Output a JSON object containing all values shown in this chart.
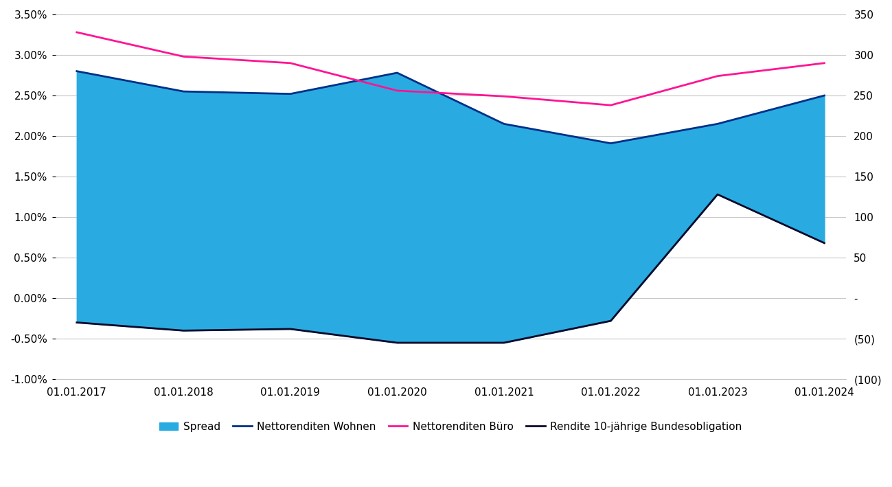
{
  "x_labels": [
    "01.01.2017",
    "01.01.2018",
    "01.01.2019",
    "01.01.2020",
    "01.01.2021",
    "01.01.2022",
    "01.01.2023",
    "01.01.2024"
  ],
  "x_positions": [
    0,
    1,
    2,
    3,
    4,
    5,
    6,
    7
  ],
  "nettorenditen_wohnen": [
    0.028,
    0.0255,
    0.0252,
    0.0278,
    0.0215,
    0.0191,
    0.0215,
    0.025
  ],
  "nettorenditen_buero": [
    0.0328,
    0.0298,
    0.029,
    0.0256,
    0.0249,
    0.0238,
    0.0274,
    0.029
  ],
  "rendite_bundesobligation": [
    -0.003,
    -0.004,
    -0.0038,
    -0.0055,
    -0.0055,
    -0.0028,
    0.0128,
    0.0068
  ],
  "color_spread": "#29ABE2",
  "color_wohnen": "#003087",
  "color_buero": "#FF1493",
  "color_bundesobligation": "#0A0A2A",
  "left_ylim": [
    -0.01,
    0.035
  ],
  "right_ylim": [
    -100,
    350
  ],
  "left_yticks": [
    -0.01,
    -0.005,
    0.0,
    0.005,
    0.01,
    0.015,
    0.02,
    0.025,
    0.03,
    0.035
  ],
  "left_yticklabels": [
    "-1.00%",
    "-0.50%",
    "0.00%",
    "0.50%",
    "1.00%",
    "1.50%",
    "2.00%",
    "2.50%",
    "3.00%",
    "3.50%"
  ],
  "right_yticks": [
    -100,
    -50,
    0,
    50,
    100,
    150,
    200,
    250,
    300,
    350
  ],
  "right_yticklabels": [
    "(100)",
    "(50)",
    "-",
    "50",
    "100",
    "150",
    "200",
    "250",
    "300",
    "350"
  ],
  "legend_labels": [
    "Spread",
    "Nettorenditen Wohnen",
    "Nettorenditen Büro",
    "Rendite 10-jährige Bundesobligation"
  ],
  "background_color": "#FFFFFF",
  "grid_color": "#C8C8C8"
}
